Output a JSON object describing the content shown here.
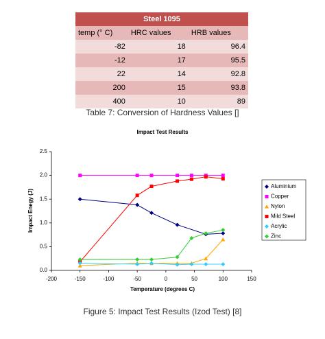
{
  "table": {
    "title": "Steel 1095",
    "columns": [
      "temp (° C)",
      "HRC values",
      "HRB values"
    ],
    "rows": [
      [
        "-82",
        "18",
        "96.4"
      ],
      [
        "-12",
        "17",
        "95.5"
      ],
      [
        "22",
        "14",
        "92.8"
      ],
      [
        "200",
        "15",
        "93.8"
      ],
      [
        "400",
        "10",
        "89"
      ]
    ]
  },
  "table_caption": "Table 7: Conversion of Hardness Values []",
  "chart_data": {
    "type": "scatter",
    "title": "Impact Test Results",
    "x_label": "Temperature (degrees C)",
    "y_label": "Impact Enegy (J)",
    "xlim": [
      -200,
      150
    ],
    "xticks": [
      -200,
      -150,
      -100,
      -50,
      0,
      50,
      100,
      150
    ],
    "ylim": [
      0,
      2.5
    ],
    "yticks": [
      {
        "value": 0,
        "label": "0.0"
      },
      0.5,
      {
        "value": 1,
        "label": "1.0"
      },
      1.5,
      {
        "value": 2,
        "label": "2.0"
      },
      2.5
    ],
    "series": [
      {
        "name": "Aluminium",
        "color": "#000080",
        "marker": "diamond",
        "x": [
          -150,
          -50,
          -25,
          20,
          70,
          100
        ],
        "values": [
          1.5,
          1.38,
          1.21,
          0.96,
          0.76,
          0.78
        ]
      },
      {
        "name": "Copper",
        "color": "#ff00ff",
        "marker": "square",
        "x": [
          -150,
          -50,
          -25,
          20,
          45,
          70,
          100
        ],
        "values": [
          2.0,
          2.0,
          2.0,
          2.0,
          2.0,
          2.0,
          2.0
        ]
      },
      {
        "name": "Nylon",
        "color": "#ffa500",
        "marker": "triangle",
        "x": [
          -150,
          -50,
          -25,
          20,
          45,
          70,
          100
        ],
        "values": [
          0.1,
          0.15,
          0.15,
          0.15,
          0.15,
          0.25,
          0.65
        ]
      },
      {
        "name": "Mild Steel",
        "color": "#ff0000",
        "marker": "square",
        "x": [
          -150,
          -50,
          -25,
          20,
          45,
          70,
          100
        ],
        "values": [
          0.18,
          1.58,
          1.77,
          1.88,
          1.92,
          1.97,
          1.93
        ]
      },
      {
        "name": "Acrylic",
        "color": "#33ccff",
        "marker": "diamond",
        "x": [
          -150,
          -50,
          -25,
          20,
          45,
          70,
          100
        ],
        "values": [
          0.15,
          0.13,
          0.15,
          0.12,
          0.13,
          0.13,
          0.13
        ]
      },
      {
        "name": "Zinc",
        "color": "#33cc33",
        "marker": "diamond",
        "x": [
          -150,
          -50,
          -25,
          20,
          45,
          70,
          100
        ],
        "values": [
          0.23,
          0.23,
          0.23,
          0.28,
          0.68,
          0.78,
          0.85
        ]
      }
    ]
  },
  "figure_caption": "Figure 5: Impact Test Results (Izod Test) [8]"
}
